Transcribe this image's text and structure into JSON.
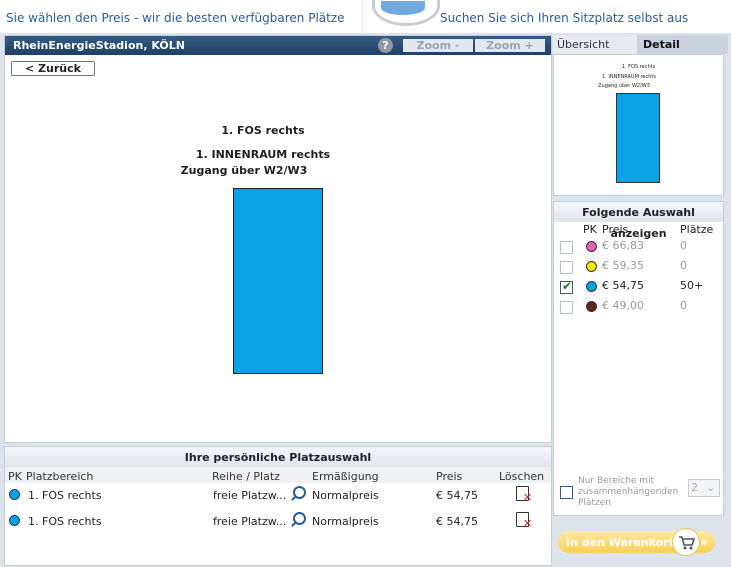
{
  "top": {
    "left_text": "Sie wählen den Preis - wir die besten verfügbaren Plätze",
    "right_text": "Suchen Sie sich Ihren Sitzplatz selbst aus"
  },
  "map": {
    "stadium_title": "RheinEnergieStadion, KÖLN",
    "help": "?",
    "zoom_out": "Zoom -",
    "zoom_in": "Zoom +",
    "back": "< Zurück",
    "area_title": "1. FOS rechts",
    "area_sub1": "1. INNENRAUM rechts",
    "area_sub2": "Zugang über W2/W3",
    "block_color": "#0aa1e6"
  },
  "selection": {
    "title": "Ihre persönliche Platzauswahl",
    "headers": {
      "pk": "PK",
      "area": "Platzbereich",
      "row": "Reihe / Platz",
      "discount": "Ermäßigung",
      "price": "Preis",
      "delete": "Löschen"
    },
    "rows": [
      {
        "area": "1. FOS rechts",
        "row": "freie Platzw...",
        "discount": "Normalpreis",
        "price": "€ 54,75"
      },
      {
        "area": "1. FOS rechts",
        "row": "freie Platzw...",
        "discount": "Normalpreis",
        "price": "€ 54,75"
      }
    ]
  },
  "tabs": {
    "overview": "Übersicht",
    "detail": "Detail"
  },
  "minimap": {
    "line1": "1. FOS rechts",
    "line2": "1. INNENRAUM rechts",
    "line3": "Zugang über W2/W3"
  },
  "filter": {
    "title": "Folgende Auswahl anzeigen",
    "headers": {
      "pk": "PK",
      "price": "Preis",
      "seats": "Plätze"
    },
    "items": [
      {
        "price": "€ 66,83",
        "seats": "0",
        "color": "#e060c0",
        "checked": false
      },
      {
        "price": "€ 59,35",
        "seats": "0",
        "color": "#f5e600",
        "checked": false
      },
      {
        "price": "€ 54,75",
        "seats": "50+",
        "color": "#0aa1e6",
        "checked": true
      },
      {
        "price": "€ 49,00",
        "seats": "0",
        "color": "#5a2a1a",
        "checked": false
      }
    ],
    "contiguous_label": "Nur Bereiche mit zusammenhängenden Plätzen",
    "contiguous_value": "2"
  },
  "cart": {
    "label": "In den Warenkorb"
  }
}
